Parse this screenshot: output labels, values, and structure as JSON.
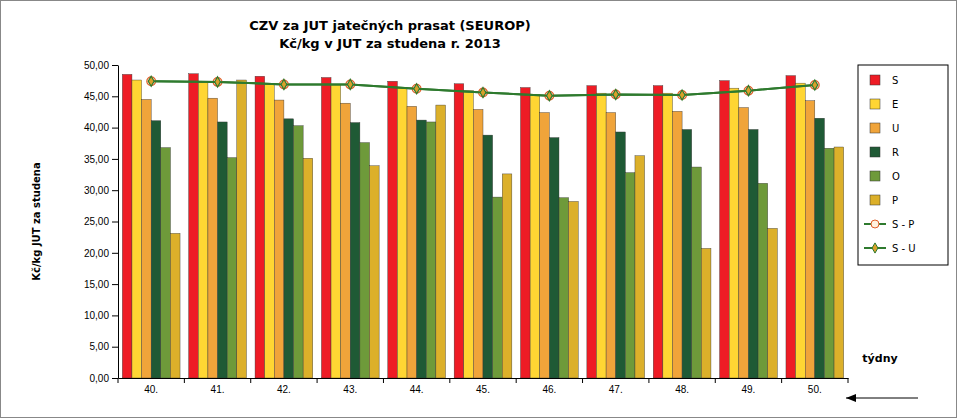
{
  "chart_data": {
    "type": "bar",
    "title": "CZV za JUT jatečných prasat (SEUROP)",
    "subtitle": "Kč/kg v JUT za studena r. 2013",
    "y_label": "Kč/kg  JUT za studena",
    "x_label": "týdny",
    "categories": [
      "40.",
      "41.",
      "42.",
      "43.",
      "44.",
      "45.",
      "46.",
      "47.",
      "48.",
      "49.",
      "50."
    ],
    "series": [
      {
        "name": "S",
        "color": "#ee1c25",
        "values": [
          48.5,
          48.6,
          48.2,
          48.0,
          47.4,
          47.0,
          46.4,
          46.7,
          46.7,
          47.5,
          48.3
        ]
      },
      {
        "name": "E",
        "color": "#ffd633",
        "values": [
          47.6,
          47.4,
          47.0,
          46.9,
          46.4,
          45.9,
          45.3,
          45.5,
          45.5,
          46.3,
          47.1
        ]
      },
      {
        "name": "U",
        "color": "#f0a43a",
        "values": [
          44.5,
          44.7,
          44.4,
          43.9,
          43.4,
          42.9,
          42.4,
          42.4,
          42.6,
          43.2,
          44.3
        ]
      },
      {
        "name": "R",
        "color": "#1f5a35",
        "values": [
          41.1,
          40.9,
          41.4,
          40.8,
          41.2,
          38.8,
          38.4,
          39.3,
          39.7,
          39.7,
          41.5
        ]
      },
      {
        "name": "O",
        "color": "#6e9a3a",
        "values": [
          36.8,
          35.2,
          40.3,
          37.6,
          40.9,
          28.9,
          28.8,
          32.8,
          33.7,
          31.1,
          36.7
        ]
      },
      {
        "name": "P",
        "color": "#dcb02a",
        "values": [
          23.1,
          47.6,
          35.1,
          33.9,
          43.6,
          32.6,
          28.2,
          35.5,
          20.7,
          23.9,
          36.9
        ]
      },
      {
        "name": "S - P",
        "type": "line",
        "color": "#2e7a2e",
        "marker": "circle",
        "values": [
          47.4,
          47.3,
          46.9,
          46.9,
          46.2,
          45.6,
          45.1,
          45.3,
          45.2,
          45.9,
          46.8
        ]
      },
      {
        "name": "S - U",
        "type": "line",
        "color": "#2e7a2e",
        "marker": "diamond",
        "values": [
          47.4,
          47.3,
          46.9,
          46.9,
          46.2,
          45.6,
          45.1,
          45.3,
          45.2,
          45.9,
          46.8
        ]
      }
    ],
    "ylim": [
      0,
      50
    ],
    "yticks": [
      {
        "value": 0,
        "label": "0,00"
      },
      {
        "value": 5,
        "label": "5,00"
      },
      {
        "value": 10,
        "label": "10,00"
      },
      {
        "value": 15,
        "label": "15,00"
      },
      {
        "value": 20,
        "label": "20,00"
      },
      {
        "value": 25,
        "label": "25,00"
      },
      {
        "value": 30,
        "label": "30,00"
      },
      {
        "value": 35,
        "label": "35,00"
      },
      {
        "value": 40,
        "label": "40,00"
      },
      {
        "value": 45,
        "label": "45,00"
      },
      {
        "value": 50,
        "label": "50,00"
      }
    ],
    "grid": false,
    "legend": "right"
  }
}
